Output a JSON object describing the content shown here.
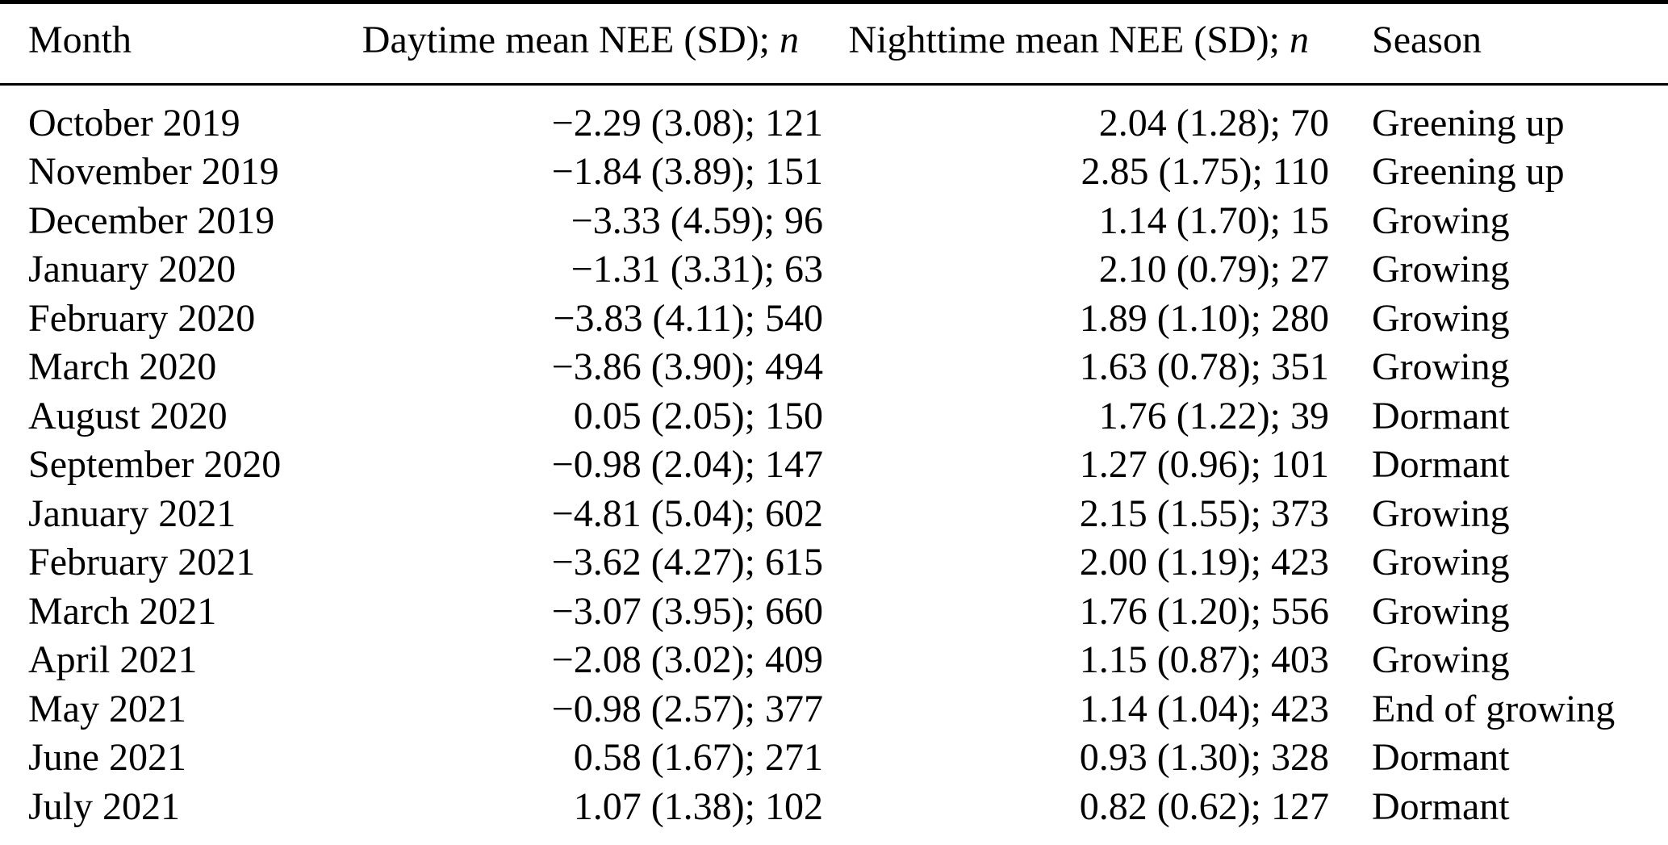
{
  "colors": {
    "background": "#ffffff",
    "text": "#000000",
    "rule": "#000000"
  },
  "table": {
    "columns": [
      {
        "label": "Month",
        "align": "left"
      },
      {
        "label_prefix": "Daytime mean NEE (SD); ",
        "label_italic": "n",
        "align": "right"
      },
      {
        "label_prefix": "Nighttime mean NEE (SD); ",
        "label_italic": "n",
        "align": "right"
      },
      {
        "label": "Season",
        "align": "left"
      }
    ],
    "rows": [
      {
        "month": "October 2019",
        "daytime": "−2.29 (3.08); 121",
        "nighttime": "2.04 (1.28); 70",
        "season": "Greening up"
      },
      {
        "month": "November 2019",
        "daytime": "−1.84 (3.89); 151",
        "nighttime": "2.85 (1.75); 110",
        "season": "Greening up"
      },
      {
        "month": "December 2019",
        "daytime": "−3.33 (4.59); 96",
        "nighttime": "1.14 (1.70); 15",
        "season": "Growing"
      },
      {
        "month": "January 2020",
        "daytime": "−1.31 (3.31); 63",
        "nighttime": "2.10 (0.79); 27",
        "season": "Growing"
      },
      {
        "month": "February 2020",
        "daytime": "−3.83 (4.11); 540",
        "nighttime": "1.89 (1.10); 280",
        "season": "Growing"
      },
      {
        "month": "March 2020",
        "daytime": "−3.86 (3.90); 494",
        "nighttime": "1.63 (0.78); 351",
        "season": "Growing"
      },
      {
        "month": "August 2020",
        "daytime": "0.05 (2.05); 150",
        "nighttime": "1.76 (1.22); 39",
        "season": "Dormant"
      },
      {
        "month": "September 2020",
        "daytime": "−0.98 (2.04); 147",
        "nighttime": "1.27 (0.96); 101",
        "season": "Dormant"
      },
      {
        "month": "January 2021",
        "daytime": "−4.81 (5.04); 602",
        "nighttime": "2.15 (1.55); 373",
        "season": "Growing"
      },
      {
        "month": "February 2021",
        "daytime": "−3.62 (4.27); 615",
        "nighttime": "2.00 (1.19); 423",
        "season": "Growing"
      },
      {
        "month": "March 2021",
        "daytime": "−3.07 (3.95); 660",
        "nighttime": "1.76 (1.20); 556",
        "season": "Growing"
      },
      {
        "month": "April 2021",
        "daytime": "−2.08 (3.02); 409",
        "nighttime": "1.15 (0.87); 403",
        "season": "Growing"
      },
      {
        "month": "May 2021",
        "daytime": "−0.98 (2.57); 377",
        "nighttime": "1.14 (1.04); 423",
        "season": "End of growing"
      },
      {
        "month": "June 2021",
        "daytime": "0.58 (1.67); 271",
        "nighttime": "0.93 (1.30); 328",
        "season": "Dormant"
      },
      {
        "month": "July 2021",
        "daytime": "1.07 (1.38); 102",
        "nighttime": "0.82 (0.62); 127",
        "season": "Dormant"
      }
    ]
  }
}
